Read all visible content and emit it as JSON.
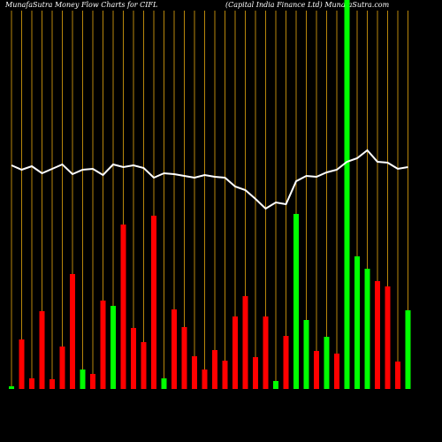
{
  "chart_data": {
    "type": "bar",
    "title": "MunafaSutra  Money Flow  Charts for CIFL",
    "subtitle": "(Capital India  Finance  Ltd) MunafaSutra.com",
    "categories": [
      null,
      null,
      null,
      null,
      null,
      null,
      null,
      null,
      null,
      null,
      null,
      null,
      null,
      null,
      null,
      null,
      null,
      null,
      null,
      null,
      null,
      null,
      null,
      null,
      null,
      null,
      null,
      null,
      null,
      null,
      null,
      null,
      null,
      null,
      null,
      null,
      null,
      null,
      null,
      null
    ],
    "values": [
      3,
      56,
      12,
      88,
      11,
      48,
      130,
      22,
      17,
      100,
      94,
      186,
      69,
      53,
      196,
      12,
      90,
      70,
      37,
      22,
      44,
      32,
      82,
      105,
      36,
      82,
      9,
      60,
      198,
      78,
      43,
      59,
      40,
      440,
      150,
      136,
      122,
      116,
      31,
      89
    ],
    "colors": [
      "#00ff00",
      "#ff0000",
      "#ff0000",
      "#ff0000",
      "#ff0000",
      "#ff0000",
      "#ff0000",
      "#00ff00",
      "#ff0000",
      "#ff0000",
      "#00ff00",
      "#ff0000",
      "#ff0000",
      "#ff0000",
      "#ff0000",
      "#00ff00",
      "#ff0000",
      "#ff0000",
      "#ff0000",
      "#ff0000",
      "#ff0000",
      "#ff0000",
      "#ff0000",
      "#ff0000",
      "#ff0000",
      "#ff0000",
      "#00ff00",
      "#ff0000",
      "#00ff00",
      "#00ff00",
      "#ff0000",
      "#00ff00",
      "#ff0000",
      "#00ff00",
      "#00ff00",
      "#00ff00",
      "#ff0000",
      "#ff0000",
      "#ff0000",
      "#00ff00"
    ],
    "line": {
      "color": "#ffffff",
      "values": [
        253,
        248,
        252,
        244,
        249,
        254,
        243,
        248,
        249,
        242,
        254,
        251,
        253,
        250,
        239,
        244,
        243,
        241,
        239,
        242,
        240,
        239,
        229,
        225,
        215,
        204,
        211,
        209,
        235,
        241,
        240,
        245,
        248,
        257,
        261,
        270,
        257,
        256,
        249,
        251
      ]
    },
    "ylim": [
      0,
      440
    ],
    "grid": true,
    "grid_color": "#b8860b"
  }
}
